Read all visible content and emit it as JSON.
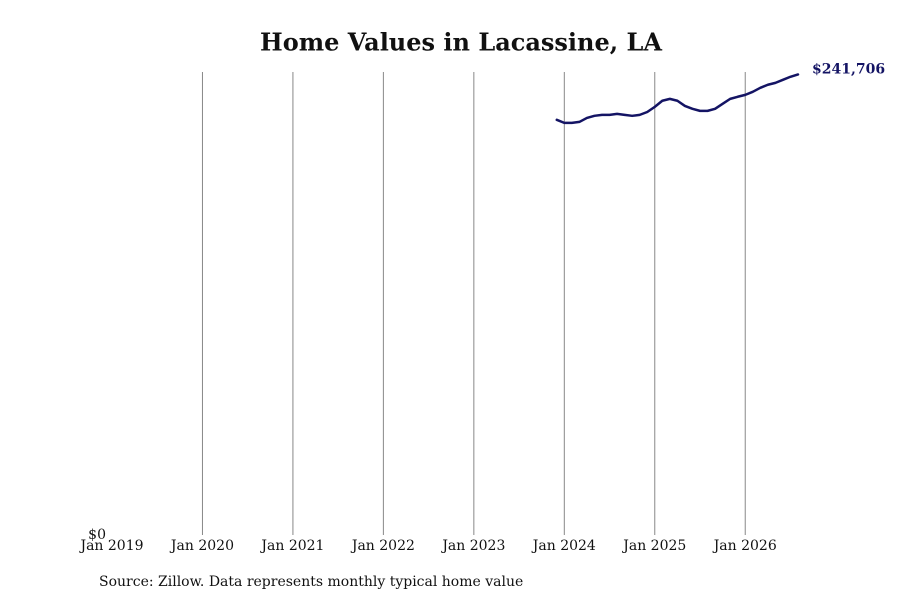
{
  "chart_data": {
    "type": "line",
    "title": "Home Values in Lacassine, LA",
    "source": "Source: Zillow. Data represents monthly typical home value",
    "x": [
      "2023-12",
      "2024-01",
      "2024-02",
      "2024-03",
      "2024-04",
      "2024-05",
      "2024-06",
      "2024-07",
      "2024-08",
      "2024-09",
      "2024-10",
      "2024-11",
      "2024-12",
      "2025-01",
      "2025-02",
      "2025-03",
      "2025-04",
      "2025-05",
      "2025-06",
      "2025-07",
      "2025-08",
      "2025-09",
      "2025-10",
      "2025-11",
      "2025-12",
      "2026-01",
      "2026-02",
      "2026-03",
      "2026-04",
      "2026-05",
      "2026-06",
      "2026-07",
      "2026-08"
    ],
    "series": [
      {
        "color": "#141464",
        "values": [
          217900,
          216300,
          216300,
          216800,
          218900,
          220000,
          220500,
          220500,
          221000,
          220500,
          220000,
          220500,
          222000,
          224700,
          227900,
          228900,
          227900,
          225200,
          223700,
          222600,
          222600,
          223700,
          226300,
          228900,
          230000,
          231000,
          232600,
          234700,
          236300,
          237300,
          238900,
          240500,
          241706
        ],
        "value_labels": [
          null,
          null,
          null,
          null,
          null,
          null,
          null,
          null,
          null,
          null,
          null,
          null,
          null,
          null,
          null,
          null,
          null,
          null,
          null,
          null,
          null,
          null,
          null,
          null,
          null,
          null,
          null,
          null,
          null,
          null,
          null,
          null,
          "$241,706"
        ]
      }
    ],
    "xlim": [
      "2019-01",
      "2026-08"
    ],
    "xticks": [
      {
        "value": "2019-01",
        "label": "Jan 2019"
      },
      {
        "value": "2020-01",
        "label": "Jan 2020"
      },
      {
        "value": "2021-01",
        "label": "Jan 2021"
      },
      {
        "value": "2022-01",
        "label": "Jan 2022"
      },
      {
        "value": "2023-01",
        "label": "Jan 2023"
      },
      {
        "value": "2024-01",
        "label": "Jan 2024"
      },
      {
        "value": "2025-01",
        "label": "Jan 2025"
      },
      {
        "value": "2026-01",
        "label": "Jan 2026"
      }
    ],
    "ylim": [
      0,
      243000
    ],
    "yticks": [
      {
        "value": 0,
        "label": "$0"
      }
    ],
    "grid": "x"
  }
}
